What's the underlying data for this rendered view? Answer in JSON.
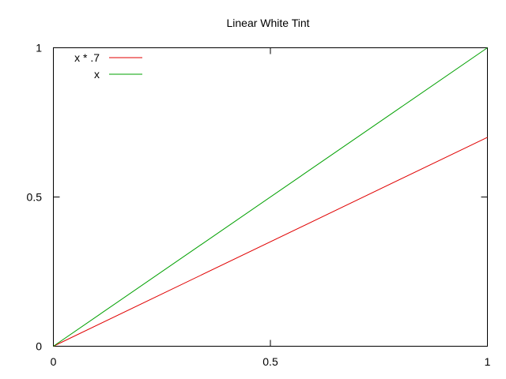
{
  "chart_data": {
    "type": "line",
    "title": "Linear White Tint",
    "xlabel": "",
    "ylabel": "",
    "xlim": [
      0,
      1
    ],
    "ylim": [
      0,
      1
    ],
    "x_ticks": [
      "0",
      "0.5",
      "1"
    ],
    "y_ticks": [
      "0",
      "0.5",
      "1"
    ],
    "x_tick_values": [
      0,
      0.5,
      1
    ],
    "y_tick_values": [
      0,
      0.5,
      1
    ],
    "grid": false,
    "legend_position": "top-left",
    "series": [
      {
        "name": "x * .7",
        "color": "#e00000",
        "x": [
          0,
          1
        ],
        "y": [
          0,
          0.7
        ]
      },
      {
        "name": "x",
        "color": "#00a000",
        "x": [
          0,
          1
        ],
        "y": [
          0,
          1
        ]
      }
    ]
  }
}
